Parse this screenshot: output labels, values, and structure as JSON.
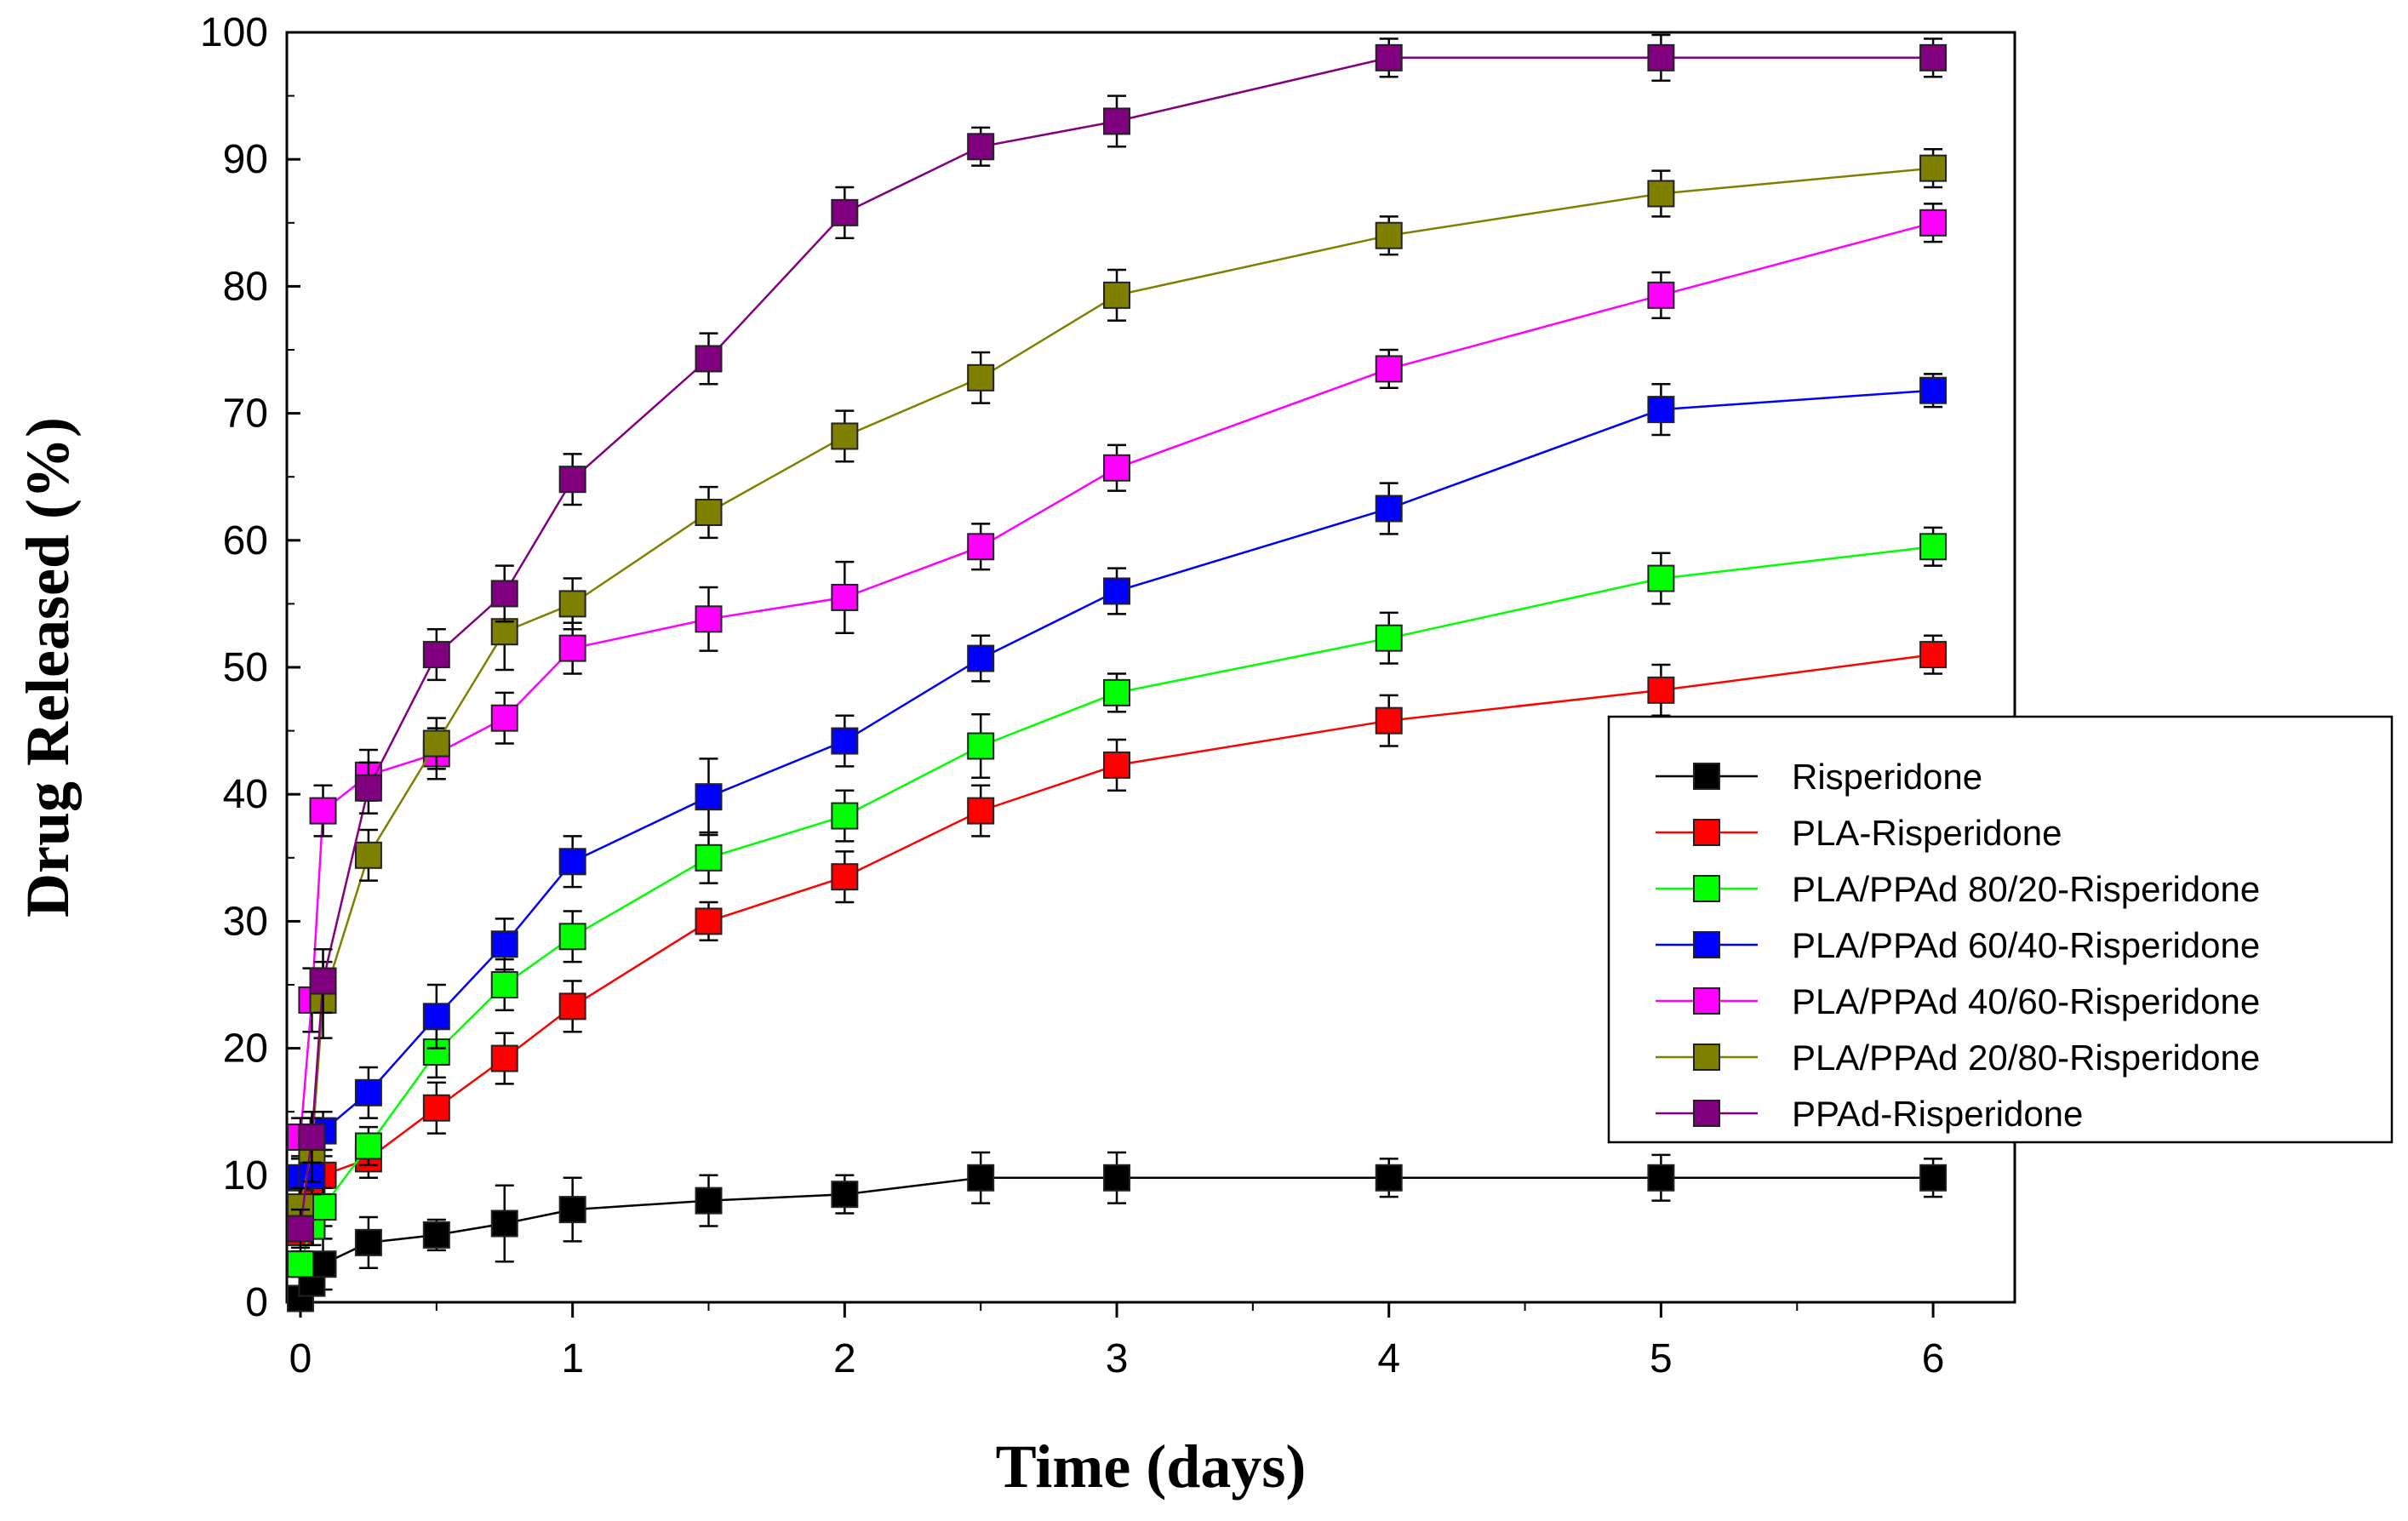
{
  "chart_data": {
    "type": "line",
    "title": "",
    "xlabel": "Time (days)",
    "ylabel": "Drug Released (%)",
    "xlim": [
      -0.05,
      6.3
    ],
    "ylim": [
      0,
      100
    ],
    "x_ticks": [
      0,
      1,
      2,
      3,
      4,
      5,
      6
    ],
    "x_tick_labels": [
      "0",
      "1",
      "2",
      "3",
      "4",
      "5",
      "6"
    ],
    "y_ticks": [
      0,
      10,
      20,
      30,
      40,
      50,
      60,
      70,
      80,
      90,
      100
    ],
    "y_tick_labels": [
      "0",
      "10",
      "20",
      "30",
      "40",
      "50",
      "60",
      "70",
      "80",
      "90",
      "100"
    ],
    "grid": false,
    "legend_position": "right",
    "x": [
      0,
      0.042,
      0.083,
      0.25,
      0.5,
      0.75,
      1,
      1.5,
      2,
      2.5,
      3,
      4,
      5,
      6
    ],
    "series": [
      {
        "name": "Risperidone",
        "color": "#000000",
        "values": [
          0.3,
          1.5,
          3.0,
          4.7,
          5.3,
          6.2,
          7.3,
          8.0,
          8.5,
          9.8,
          9.8,
          9.8,
          9.8,
          9.8
        ],
        "errors": [
          0.8,
          1.5,
          2.0,
          2.0,
          1.2,
          3.0,
          2.5,
          2.0,
          1.5,
          2.0,
          2.0,
          1.5,
          1.8,
          1.5
        ]
      },
      {
        "name": "PLA-Risperidone",
        "color": "#ff0000",
        "values": [
          5.5,
          9.0,
          10.0,
          11.3,
          15.3,
          19.2,
          23.3,
          30.0,
          33.5,
          38.7,
          42.3,
          45.8,
          48.2,
          51.0
        ],
        "errors": [
          1.5,
          1.5,
          1.5,
          1.5,
          2.0,
          2.0,
          2.0,
          1.5,
          2.0,
          2.0,
          2.0,
          2.0,
          2.0,
          1.5
        ]
      },
      {
        "name": "PLA/PPAd 80/20-Risperidone",
        "color": "#00ff00",
        "values": [
          3.0,
          6.0,
          7.5,
          12.3,
          19.7,
          25.0,
          28.8,
          35.0,
          38.3,
          43.8,
          48.0,
          52.3,
          57.0,
          59.5
        ],
        "errors": [
          1.0,
          1.5,
          1.5,
          1.5,
          2.0,
          2.0,
          2.0,
          2.0,
          2.0,
          2.5,
          1.5,
          2.0,
          2.0,
          1.5
        ]
      },
      {
        "name": "PLA/PPAd 60/40-Risperidone",
        "color": "#0000ff",
        "values": [
          9.8,
          10.0,
          13.5,
          16.5,
          22.5,
          28.2,
          34.7,
          39.8,
          44.2,
          50.7,
          56.0,
          62.5,
          70.3,
          71.8
        ],
        "errors": [
          1.5,
          1.5,
          1.5,
          2.0,
          2.5,
          2.0,
          2.0,
          3.0,
          2.0,
          1.8,
          1.8,
          2.0,
          2.0,
          1.3
        ]
      },
      {
        "name": "PLA/PPAd 40/60-Risperidone",
        "color": "#ff00ff",
        "values": [
          13.0,
          23.8,
          38.7,
          41.5,
          43.2,
          46.0,
          51.5,
          53.8,
          55.5,
          59.5,
          65.7,
          73.5,
          79.3,
          85.0
        ],
        "errors": [
          1.5,
          2.5,
          2.0,
          2.0,
          2.0,
          2.0,
          2.0,
          2.5,
          2.8,
          1.8,
          1.8,
          1.5,
          1.8,
          1.5
        ]
      },
      {
        "name": "PLA/PPAd 20/80-Risperidone",
        "color": "#808000",
        "values": [
          7.5,
          12.0,
          23.8,
          35.2,
          44.0,
          52.8,
          55.0,
          62.2,
          68.2,
          72.8,
          79.3,
          84.0,
          87.3,
          89.3
        ],
        "errors": [
          1.5,
          2.5,
          3.0,
          2.0,
          2.0,
          3.0,
          2.0,
          2.0,
          2.0,
          2.0,
          2.0,
          1.5,
          1.8,
          1.5
        ]
      },
      {
        "name": "PPAd-Risperidone",
        "color": "#800080",
        "values": [
          5.8,
          13.0,
          25.3,
          40.5,
          51.0,
          55.8,
          64.8,
          74.3,
          85.8,
          91.0,
          93.0,
          98.0,
          98.0,
          98.0
        ],
        "errors": [
          1.5,
          2.0,
          2.5,
          2.0,
          2.0,
          2.2,
          2.0,
          2.0,
          2.0,
          1.5,
          2.0,
          1.5,
          1.8,
          1.5
        ]
      }
    ]
  }
}
